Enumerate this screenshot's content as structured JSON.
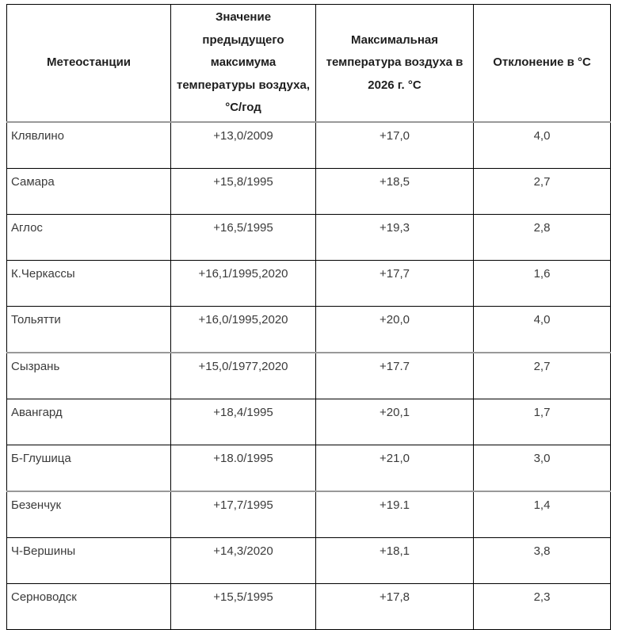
{
  "chart_data": {
    "type": "table",
    "columns": [
      "Метеостанции",
      "Значение предыдущего максимума температуры воздуха, °С/год",
      "Максимальная температура воздуха в 2026 г. °С",
      "Отклонение в °С"
    ],
    "rows": [
      [
        "Клявлино",
        "+13,0/2009",
        "+17,0",
        "4,0"
      ],
      [
        "Самара",
        "+15,8/1995",
        "+18,5",
        "2,7"
      ],
      [
        "Аглос",
        "+16,5/1995",
        "+19,3",
        "2,8"
      ],
      [
        "К.Черкассы",
        "+16,1/1995,2020",
        "+17,7",
        "1,6"
      ],
      [
        "Тольятти",
        "+16,0/1995,2020",
        "+20,0",
        "4,0"
      ],
      [
        "Сызрань",
        "+15,0/1977,2020",
        "+17.7",
        "2,7"
      ],
      [
        "Авангард",
        "+18,4/1995",
        "+20,1",
        "1,7"
      ],
      [
        "Б-Глушица",
        "+18.0/1995",
        "+21,0",
        "3,0"
      ],
      [
        "Безенчук",
        "+17,7/1995",
        "+19.1",
        "1,4"
      ],
      [
        "Ч-Вершины",
        "+14,3/2020",
        "+18,1",
        "3,8"
      ],
      [
        "Серноводск",
        "+15,5/1995",
        "+17,8",
        "2,3"
      ]
    ],
    "layout": {
      "grid": true,
      "header_row": true,
      "legend": "none"
    }
  },
  "colors": {
    "border": "#000000",
    "separator_border": "#999999",
    "header_text": "#1f1f1f",
    "body_text": "#3b3b3b",
    "background": "#ffffff"
  }
}
